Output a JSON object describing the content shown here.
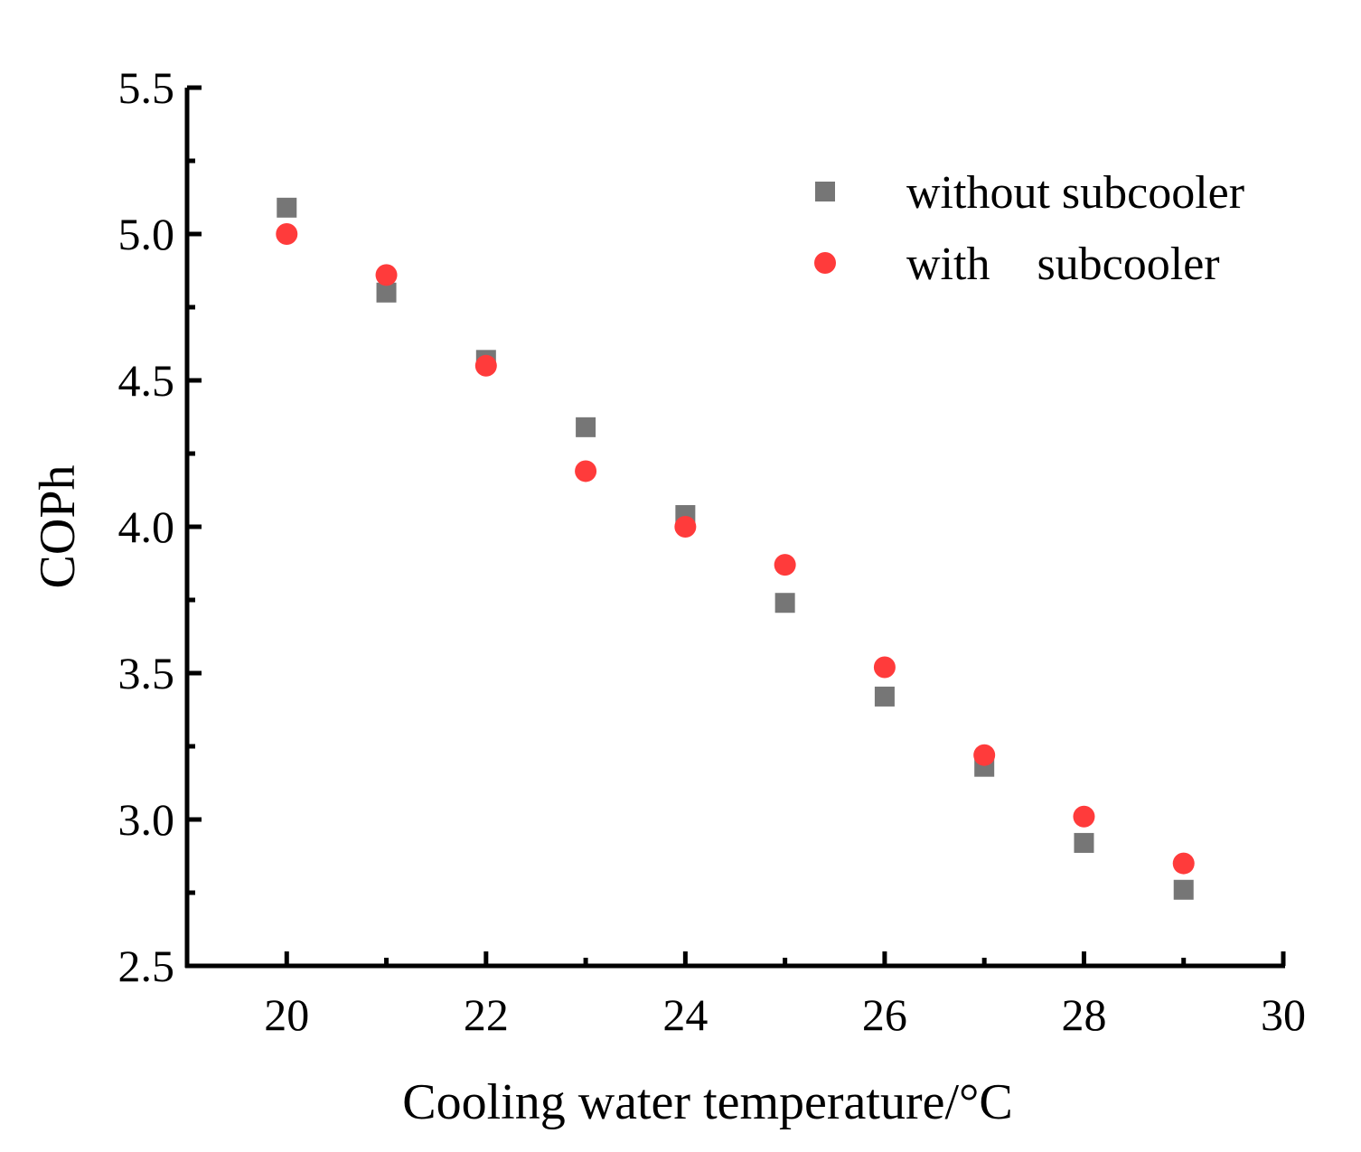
{
  "chart_data": {
    "type": "scatter",
    "title": "",
    "xlabel": "Cooling water temperature/°C",
    "ylabel": "COPh",
    "xlim": [
      19,
      30
    ],
    "ylim": [
      2.5,
      5.5
    ],
    "xticks": [
      "20",
      "22",
      "24",
      "26",
      "28",
      "30"
    ],
    "yticks": [
      "2.5",
      "3.0",
      "3.5",
      "4.0",
      "4.5",
      "5.0",
      "5.5"
    ],
    "x": [
      20,
      21,
      22,
      23,
      24,
      25,
      26,
      27,
      28,
      29
    ],
    "legend_position": "top-right",
    "series": [
      {
        "name": "without subcooler",
        "marker": "square",
        "color": "#767676",
        "values": [
          5.09,
          4.8,
          4.57,
          4.34,
          4.04,
          3.74,
          3.42,
          3.18,
          2.92,
          2.76
        ]
      },
      {
        "name": "with    subcooler",
        "marker": "circle",
        "color": "#ff3b3b",
        "values": [
          5.0,
          4.86,
          4.55,
          4.19,
          4.0,
          3.87,
          3.52,
          3.22,
          3.01,
          2.85
        ]
      }
    ]
  }
}
